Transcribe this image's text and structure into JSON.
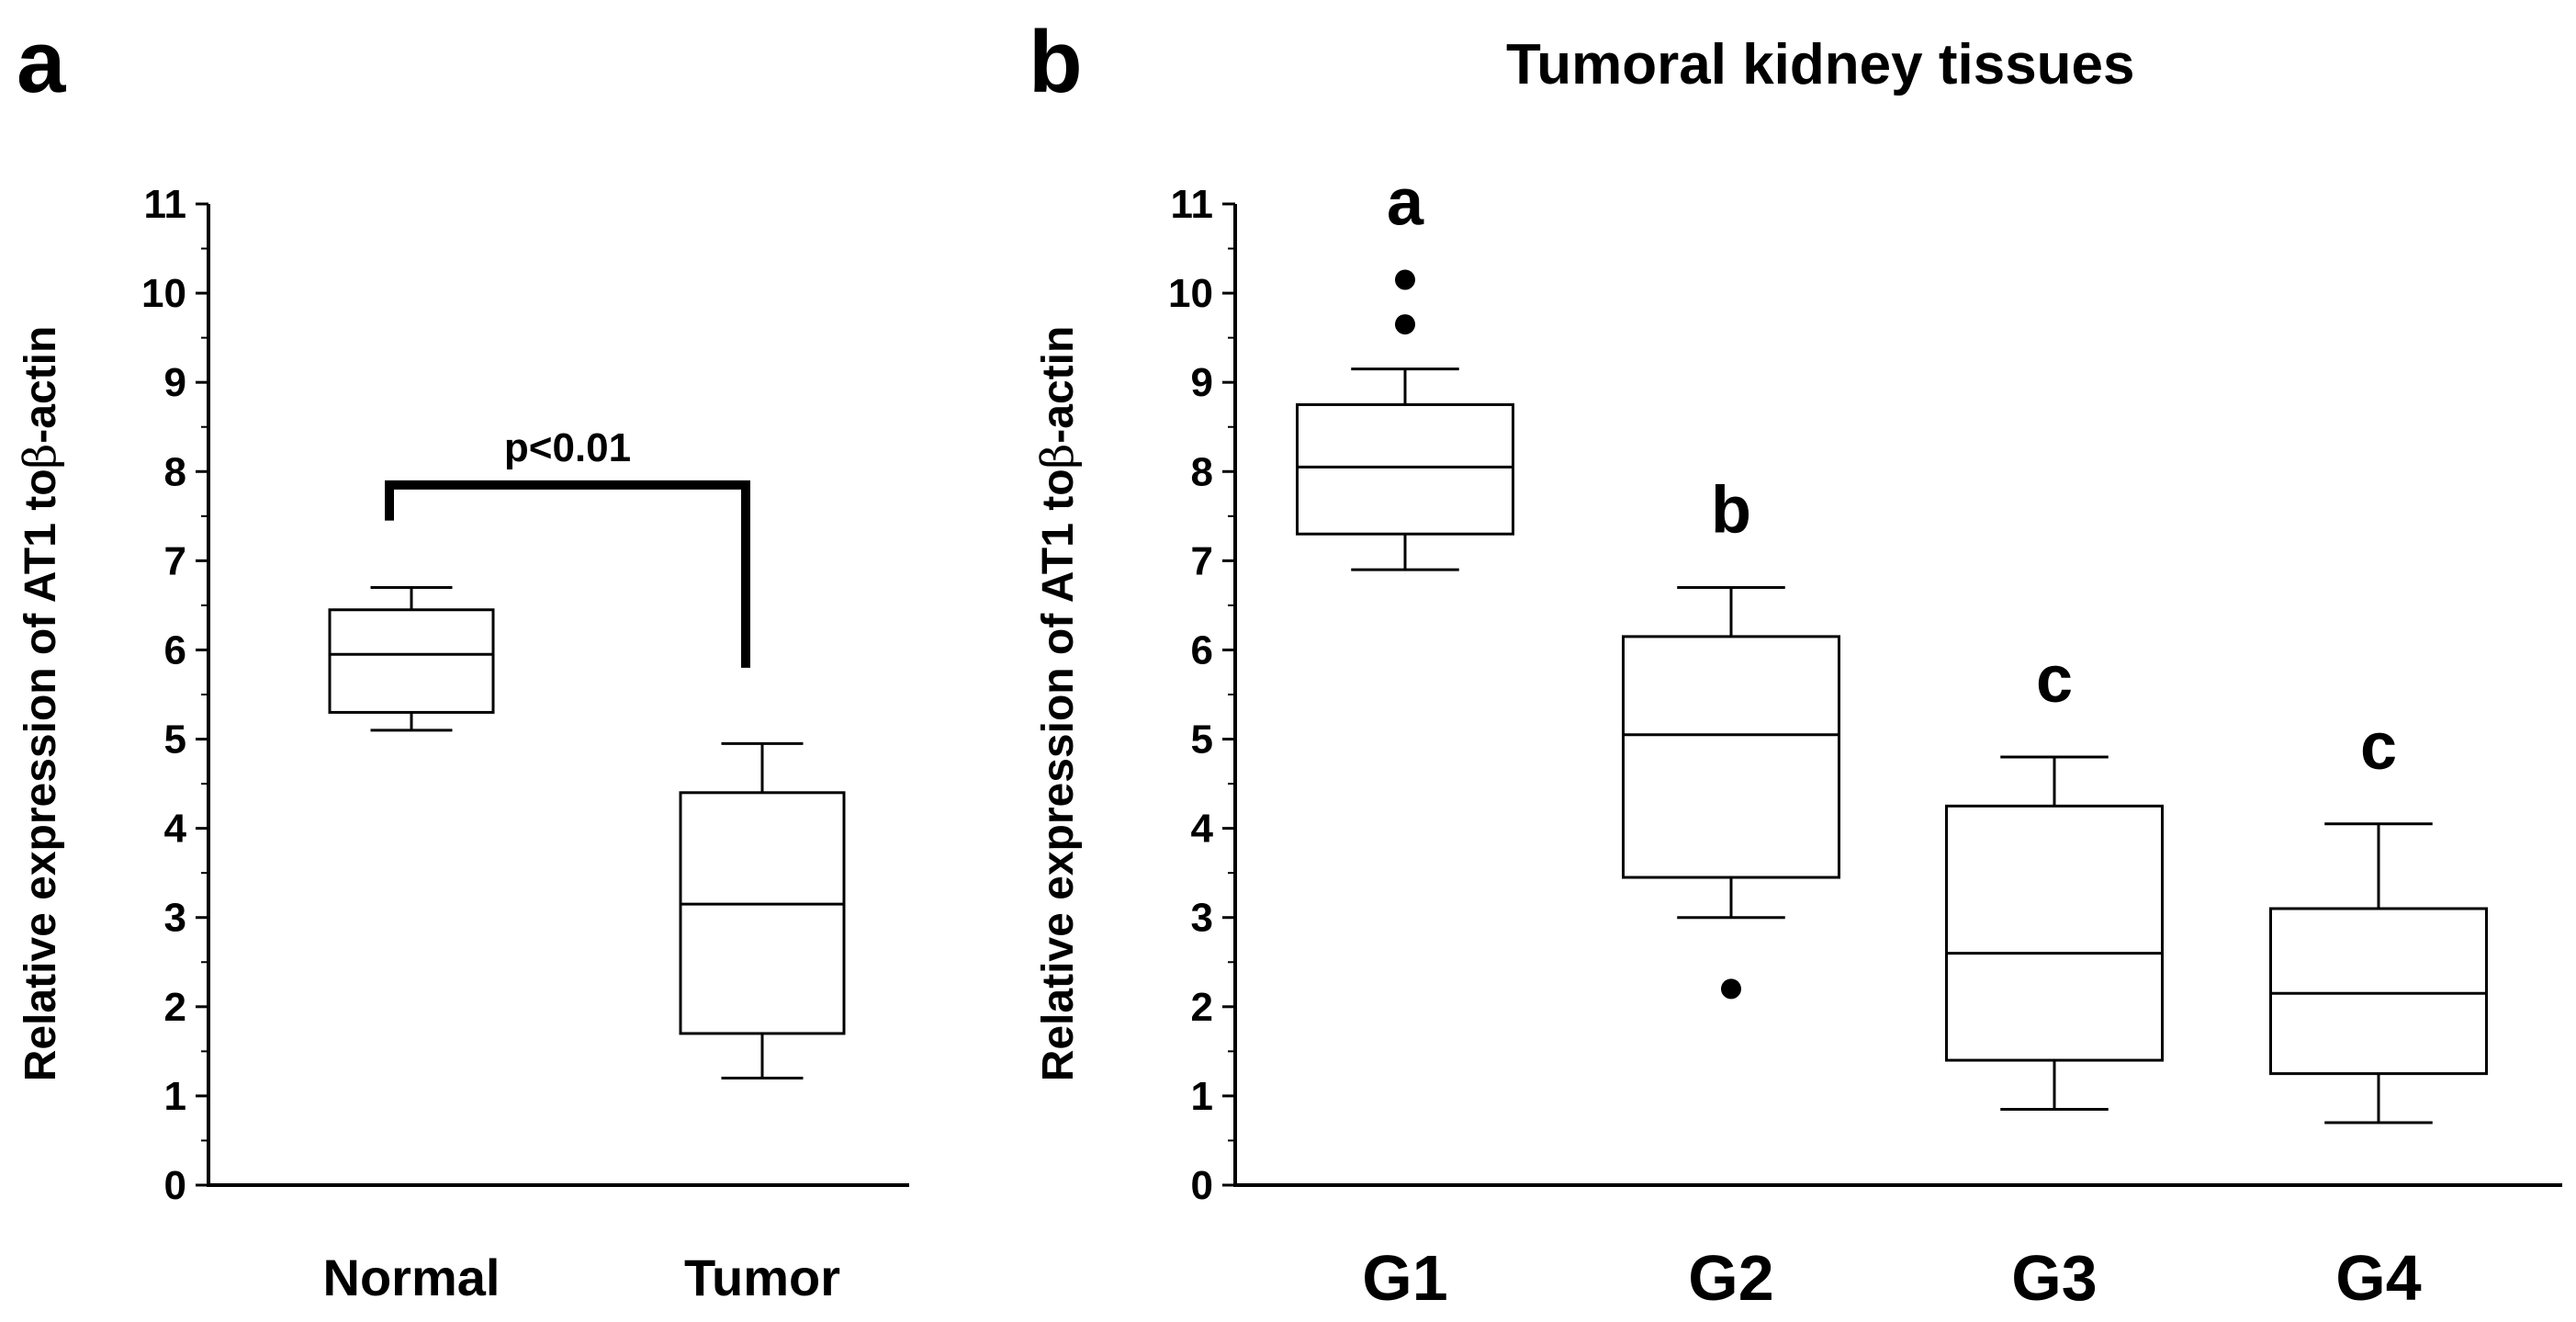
{
  "panels": {
    "a": {
      "label": "a"
    },
    "b": {
      "label": "b",
      "title": "Tumoral kidney tissues"
    }
  },
  "colors": {
    "axis": "#000000",
    "box_fill": "#ffffff",
    "box_stroke": "#000000"
  },
  "chart_data": [
    {
      "type": "boxplot",
      "panel": "a",
      "title": "",
      "xlabel": "",
      "ylabel_prefix": "Relative expression of  AT1 to",
      "ylabel_greek": "β",
      "ylabel_suffix": "-actin",
      "ylim": [
        0,
        11
      ],
      "yticks": [
        0,
        1,
        2,
        3,
        4,
        5,
        6,
        7,
        8,
        9,
        10,
        11
      ],
      "categories": [
        "Normal",
        "Tumor"
      ],
      "boxes": [
        {
          "name": "Normal",
          "whisker_low": 5.1,
          "q1": 5.3,
          "median": 5.95,
          "q3": 6.45,
          "whisker_high": 6.7,
          "outliers": []
        },
        {
          "name": "Tumor",
          "whisker_low": 1.2,
          "q1": 1.7,
          "median": 3.15,
          "q3": 4.4,
          "whisker_high": 4.95,
          "outliers": []
        }
      ],
      "significance": {
        "text": "p<0.01",
        "left_end": 7.45,
        "right_end": 5.8,
        "level": 7.85
      }
    },
    {
      "type": "boxplot",
      "panel": "b",
      "title": "Tumoral kidney tissues",
      "xlabel": "",
      "ylabel_prefix": "Relative expression of  AT1 to",
      "ylabel_greek": "β",
      "ylabel_suffix": "-actin",
      "ylim": [
        0,
        11
      ],
      "yticks": [
        0,
        1,
        2,
        3,
        4,
        5,
        6,
        7,
        8,
        9,
        10,
        11
      ],
      "categories": [
        "G1",
        "G2",
        "G3",
        "G4"
      ],
      "boxes": [
        {
          "name": "G1",
          "whisker_low": 6.9,
          "q1": 7.3,
          "median": 8.05,
          "q3": 8.75,
          "whisker_high": 9.15,
          "outliers": [
            9.65,
            10.15
          ],
          "group_letter": "a"
        },
        {
          "name": "G2",
          "whisker_low": 3.0,
          "q1": 3.45,
          "median": 5.05,
          "q3": 6.15,
          "whisker_high": 6.7,
          "outliers": [
            2.2
          ],
          "group_letter": "b"
        },
        {
          "name": "G3",
          "whisker_low": 0.85,
          "q1": 1.4,
          "median": 2.6,
          "q3": 4.25,
          "whisker_high": 4.8,
          "outliers": [],
          "group_letter": "c"
        },
        {
          "name": "G4",
          "whisker_low": 0.7,
          "q1": 1.25,
          "median": 2.15,
          "q3": 3.1,
          "whisker_high": 4.05,
          "outliers": [],
          "group_letter": "c"
        }
      ]
    }
  ]
}
